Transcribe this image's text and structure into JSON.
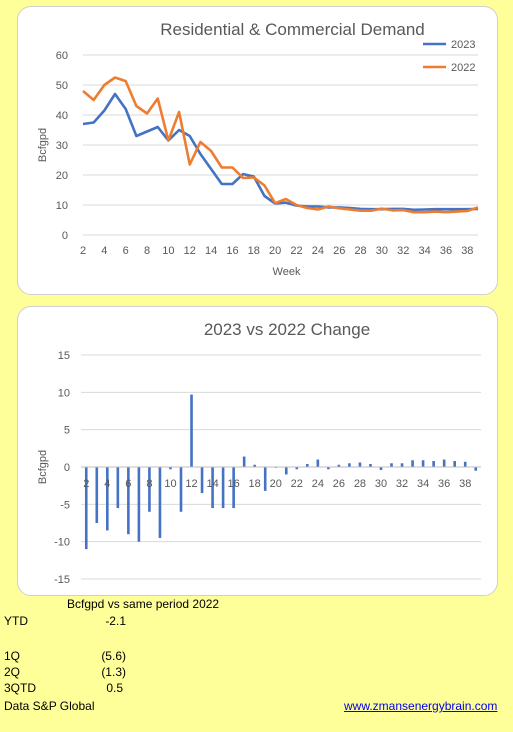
{
  "chart_data": [
    {
      "type": "line",
      "title": "Residential & Commercial Demand",
      "xlabel": "Week",
      "ylabel": "Bcfgpd",
      "ylim": [
        0,
        60
      ],
      "yticks": [
        0,
        10,
        20,
        30,
        40,
        50,
        60
      ],
      "xticks": [
        2,
        4,
        6,
        8,
        10,
        12,
        14,
        16,
        18,
        20,
        22,
        24,
        26,
        28,
        30,
        32,
        34,
        36,
        38
      ],
      "xlim": [
        2,
        39
      ],
      "grid": true,
      "legend": "top-right",
      "x": [
        2,
        3,
        4,
        5,
        6,
        7,
        8,
        9,
        10,
        11,
        12,
        13,
        14,
        15,
        16,
        17,
        18,
        19,
        20,
        21,
        22,
        23,
        24,
        25,
        26,
        27,
        28,
        29,
        30,
        31,
        32,
        33,
        34,
        35,
        36,
        37,
        38,
        39
      ],
      "series": [
        {
          "name": "2023",
          "color": "#4472c4",
          "values": [
            37,
            37.5,
            41.5,
            47,
            42,
            33,
            34.5,
            36,
            31.5,
            35,
            33,
            27,
            22,
            17,
            17,
            20.3,
            19.5,
            13,
            10.5,
            10.8,
            9.8,
            9.5,
            9.5,
            9.2,
            9.2,
            9,
            8.7,
            8.6,
            8.6,
            8.7,
            8.7,
            8.4,
            8.5,
            8.6,
            8.6,
            8.6,
            8.6,
            8.7
          ]
        },
        {
          "name": "2022",
          "color": "#ed7d31",
          "values": [
            48,
            45,
            50,
            52.5,
            51.3,
            43,
            40.5,
            45.5,
            31.5,
            41,
            23.5,
            31,
            28,
            22.5,
            22.5,
            19,
            19.2,
            16.5,
            10.6,
            12,
            10,
            9,
            8.5,
            9.5,
            8.9,
            8.5,
            8.1,
            8.1,
            8.8,
            8.2,
            8.3,
            7.6,
            7.6,
            7.8,
            7.6,
            7.8,
            8,
            9.2
          ]
        }
      ]
    },
    {
      "type": "bar",
      "title": "2023 vs 2022 Change",
      "xlabel": "",
      "ylabel": "Bcfgpd",
      "ylim": [
        -15,
        15
      ],
      "yticks": [
        -15,
        -10,
        -5,
        0,
        5,
        10,
        15
      ],
      "xticks": [
        2,
        4,
        6,
        8,
        10,
        12,
        14,
        16,
        18,
        20,
        22,
        24,
        26,
        28,
        30,
        32,
        34,
        36,
        38
      ],
      "grid": true,
      "x": [
        2,
        3,
        4,
        5,
        6,
        7,
        8,
        9,
        10,
        11,
        12,
        13,
        14,
        15,
        16,
        17,
        18,
        19,
        20,
        21,
        22,
        23,
        24,
        25,
        26,
        27,
        28,
        29,
        30,
        31,
        32,
        33,
        34,
        35,
        36,
        37,
        38,
        39
      ],
      "series": [
        {
          "color": "#4472c4",
          "values": [
            -11,
            -7.5,
            -8.5,
            -5.5,
            -9,
            -10,
            -6,
            -9.5,
            -0.3,
            -6,
            9.7,
            -3.5,
            -5.5,
            -5.5,
            -5.5,
            1.4,
            0.3,
            -3.2,
            -0.1,
            -1,
            -0.3,
            0.4,
            1,
            -0.3,
            0.3,
            0.5,
            0.6,
            0.4,
            -0.4,
            0.5,
            0.5,
            0.9,
            0.9,
            0.8,
            1,
            0.8,
            0.7,
            -0.5
          ]
        }
      ]
    }
  ],
  "summary": {
    "header": "Bcfgpd vs same period 2022",
    "ytd_label": "YTD",
    "ytd_value": "-2.1",
    "q1_label": "1Q",
    "q1_value": "(5.6)",
    "q2_label": "2Q",
    "q2_value": "(1.3)",
    "q3_label": "3QTD",
    "q3_value": "0.5",
    "source": "Data S&P Global",
    "website": "www.zmansenergybrain.com"
  }
}
